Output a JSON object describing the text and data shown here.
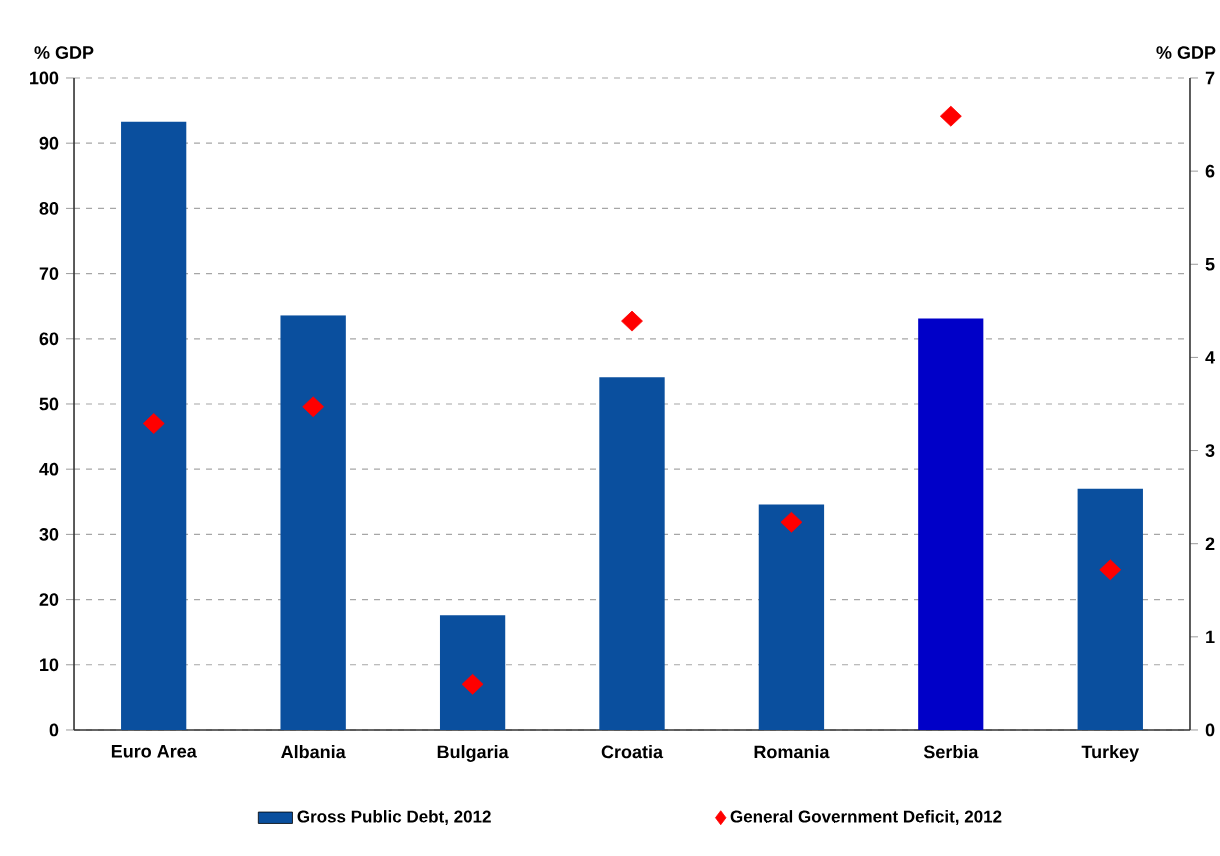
{
  "chart_data": {
    "type": "bar",
    "ylabel": "% GDP",
    "y2label": "% GDP",
    "categories": [
      "Euro Area",
      "Albania",
      "Bulgaria",
      "Croatia",
      "Romania",
      "Serbia",
      "Turkey"
    ],
    "series": [
      {
        "name": "Gross Public Debt, 2012",
        "color": "#0a4f9e",
        "colors": [
          "#0a4f9e",
          "#0a4f9e",
          "#0a4f9e",
          "#0a4f9e",
          "#0a4f9e",
          "#0000c8",
          "#0a4f9e"
        ],
        "values": [
          93.3,
          63.6,
          17.6,
          54.1,
          34.6,
          63.1,
          37.0
        ]
      },
      {
        "name": "General Government Deficit, 2012",
        "type": "scatter",
        "axis": "y2",
        "color": "#ff0000",
        "marker": "diamond",
        "values": [
          3.29,
          3.47,
          0.49,
          4.39,
          2.23,
          6.59,
          1.72
        ]
      }
    ],
    "ylim": [
      0,
      100
    ],
    "yticks": [
      0,
      10,
      20,
      30,
      40,
      50,
      60,
      70,
      80,
      90,
      100
    ],
    "y2lim": [
      0,
      7
    ],
    "y2ticks": [
      0,
      1,
      2,
      3,
      4,
      5,
      6,
      7
    ],
    "grid": "y",
    "legend": "bottom"
  }
}
